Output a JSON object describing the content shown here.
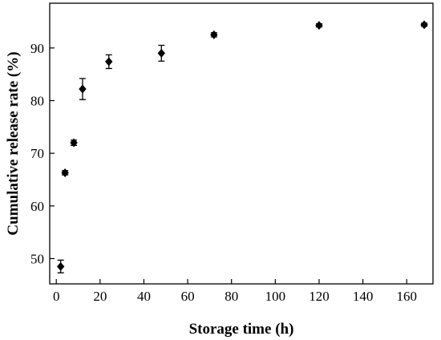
{
  "chart_data": {
    "type": "scatter",
    "title": "",
    "xlabel": "Storage time (h)",
    "ylabel": "Cumulative release rate (%)",
    "xlim": [
      -3,
      172
    ],
    "ylim": [
      45.2,
      98.5
    ],
    "x_ticks": [
      0,
      20,
      40,
      60,
      80,
      100,
      120,
      140,
      160
    ],
    "y_ticks": [
      50,
      60,
      70,
      80,
      90
    ],
    "marker": "diamond",
    "marker_color": "#000000",
    "grid": false,
    "legend": "none",
    "series": [
      {
        "points": [
          {
            "x": 2,
            "y": 48.5,
            "err": 1.2
          },
          {
            "x": 4,
            "y": 66.3,
            "err": 0.4
          },
          {
            "x": 8,
            "y": 72.0,
            "err": 0.5
          },
          {
            "x": 12,
            "y": 82.2,
            "err": 2.0
          },
          {
            "x": 24,
            "y": 87.4,
            "err": 1.3
          },
          {
            "x": 48,
            "y": 89.0,
            "err": 1.5
          },
          {
            "x": 72,
            "y": 92.5,
            "err": 0.4
          },
          {
            "x": 120,
            "y": 94.3,
            "err": 0.3
          },
          {
            "x": 168,
            "y": 94.4,
            "err": 0.3
          }
        ]
      }
    ]
  }
}
